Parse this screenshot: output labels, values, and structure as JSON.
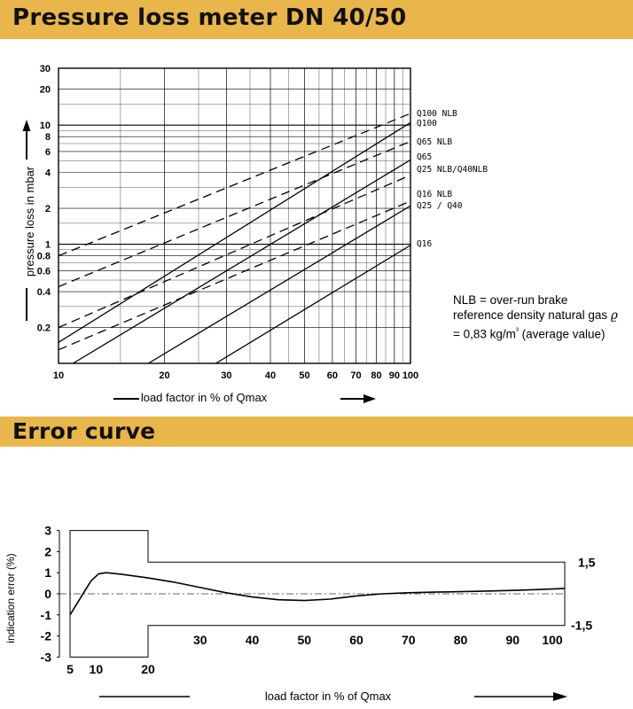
{
  "pressure_section": {
    "title": "Pressure loss meter DN 40/50",
    "note_lines": [
      "NLB = over-run brake",
      "reference density natural gas ",
      "= 0,83 kg/m",
      "³",
      " (average value)"
    ],
    "rho_symbol": "ϱ"
  },
  "error_section": {
    "title": "Error curve"
  },
  "chart_data": [
    {
      "type": "line",
      "title": "Pressure loss meter DN 40/50",
      "xlabel": "load factor in % of Qmax",
      "ylabel": "pressure loss in mbar",
      "x_scale": "log",
      "y_scale": "log",
      "xlim": [
        10,
        100
      ],
      "ylim": [
        0.1,
        30
      ],
      "x_ticks": [
        10,
        20,
        30,
        40,
        50,
        60,
        70,
        80,
        90,
        100
      ],
      "x_tick_labels": [
        "10",
        "20",
        "30",
        "40",
        "50",
        "60",
        "70",
        "80",
        "90",
        "100"
      ],
      "y_ticks": [
        0.2,
        0.4,
        0.6,
        0.8,
        1,
        2,
        4,
        6,
        8,
        10,
        20,
        30
      ],
      "y_tick_labels": [
        "0.2",
        "0.4",
        "0.6",
        "0.8",
        "1",
        "2",
        "4",
        "6",
        "8",
        "10",
        "20",
        "30"
      ],
      "grid": true,
      "series": [
        {
          "name": "Q100  NLB",
          "style": "dashed",
          "x": [
            10,
            100
          ],
          "y": [
            0.8,
            12.5
          ]
        },
        {
          "name": "Q100",
          "style": "solid",
          "x": [
            10,
            100
          ],
          "y": [
            0.15,
            10.5
          ]
        },
        {
          "name": "Q65  NLB",
          "style": "dashed",
          "x": [
            10,
            100
          ],
          "y": [
            0.44,
            7.3
          ]
        },
        {
          "name": "Q65",
          "style": "solid",
          "x": [
            11,
            100
          ],
          "y": [
            0.1,
            5.1
          ]
        },
        {
          "name": "Q25 NLB/Q40NLB",
          "style": "dashed",
          "x": [
            10,
            100
          ],
          "y": [
            0.2,
            3.8
          ]
        },
        {
          "name": "Q16  NLB",
          "style": "dashed",
          "x": [
            10,
            100
          ],
          "y": [
            0.13,
            2.3
          ]
        },
        {
          "name": "Q25 / Q40",
          "style": "solid",
          "x": [
            18,
            100
          ],
          "y": [
            0.1,
            2.1
          ]
        },
        {
          "name": "Q16",
          "style": "solid",
          "x": [
            28,
            100
          ],
          "y": [
            0.1,
            0.98
          ]
        }
      ],
      "axis_arrows": {
        "x": "right",
        "y": "up"
      }
    },
    {
      "type": "line",
      "title": "Error curve",
      "xlabel": "load factor in % of Qmax",
      "ylabel": "indication error (%)",
      "x_ticks_low": [
        "5",
        "10",
        "20"
      ],
      "x_ticks_high": [
        "30",
        "40",
        "50",
        "60",
        "70",
        "80",
        "90",
        "100"
      ],
      "y_ticks": [
        3,
        2,
        1,
        0,
        -1,
        -2,
        -3
      ],
      "y_tick_labels": [
        "3",
        "2",
        "1",
        "0",
        "-1",
        "-2",
        "-3"
      ],
      "tolerance_band_low_load": {
        "x_range": [
          5,
          20
        ],
        "error_limit": 3
      },
      "tolerance_band_high_load": {
        "x_range": [
          20,
          100
        ],
        "error_limit": 1.5
      },
      "right_labels": [
        "1,5",
        "-1,5"
      ],
      "series": [
        {
          "name": "",
          "x": [
            5,
            7,
            9,
            10.5,
            12,
            15,
            20,
            25,
            30,
            35,
            40,
            45,
            50,
            55,
            60,
            65,
            70,
            75,
            80,
            85,
            90,
            95,
            100
          ],
          "y": [
            -1.0,
            -0.2,
            0.6,
            0.95,
            1.0,
            0.92,
            0.75,
            0.55,
            0.3,
            0.05,
            -0.15,
            -0.28,
            -0.32,
            -0.25,
            -0.1,
            0.0,
            0.05,
            0.08,
            0.1,
            0.13,
            0.16,
            0.2,
            0.25
          ]
        }
      ],
      "axis_arrows": {
        "x": "right"
      }
    }
  ]
}
